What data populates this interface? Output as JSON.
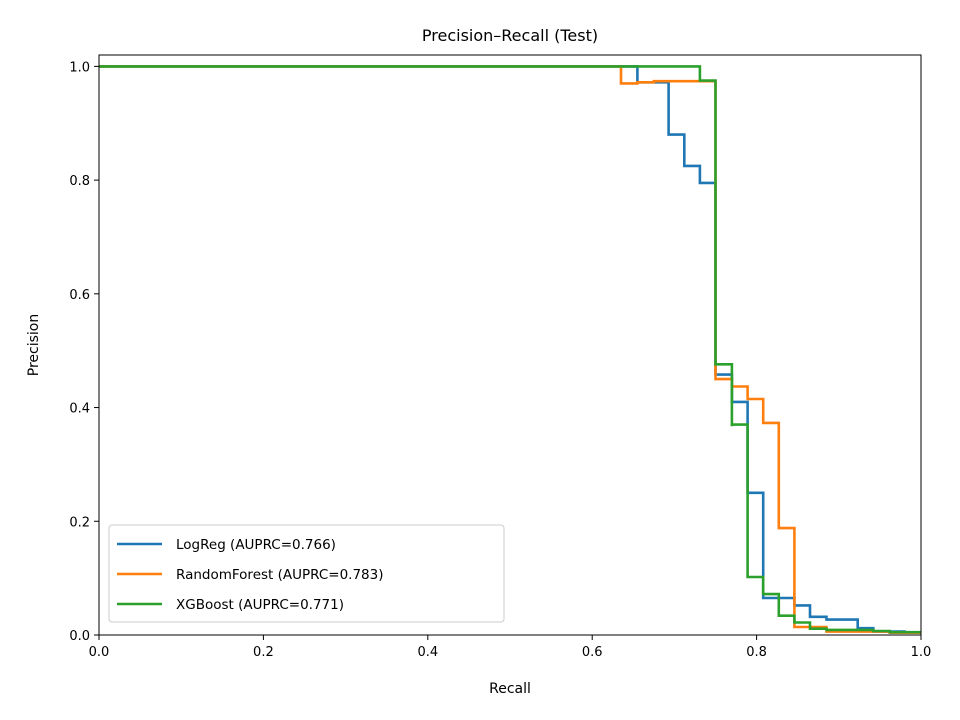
{
  "chart_data": {
    "type": "line",
    "step": "post",
    "title": "Precision–Recall (Test)",
    "xlabel": "Recall",
    "ylabel": "Precision",
    "xlim": [
      0,
      1
    ],
    "ylim": [
      0,
      1.02
    ],
    "x_ticks": [
      "0.0",
      "0.2",
      "0.4",
      "0.6",
      "0.8",
      "1.0"
    ],
    "y_ticks": [
      "0.0",
      "0.2",
      "0.4",
      "0.6",
      "0.8",
      "1.0"
    ],
    "grid": false,
    "legend_position": "lower-left",
    "series": [
      {
        "name": "LogReg (AUPRC=0.766)",
        "color": "#1f77b4",
        "points": [
          [
            0,
            1.0
          ],
          [
            0.655,
            1.0
          ],
          [
            0.655,
            0.972
          ],
          [
            0.693,
            0.972
          ],
          [
            0.693,
            0.88
          ],
          [
            0.712,
            0.88
          ],
          [
            0.712,
            0.825
          ],
          [
            0.731,
            0.825
          ],
          [
            0.731,
            0.795
          ],
          [
            0.75,
            0.795
          ],
          [
            0.75,
            0.458
          ],
          [
            0.77,
            0.458
          ],
          [
            0.77,
            0.41
          ],
          [
            0.789,
            0.41
          ],
          [
            0.789,
            0.25
          ],
          [
            0.808,
            0.25
          ],
          [
            0.808,
            0.065
          ],
          [
            0.846,
            0.065
          ],
          [
            0.846,
            0.052
          ],
          [
            0.865,
            0.052
          ],
          [
            0.865,
            0.032
          ],
          [
            0.885,
            0.032
          ],
          [
            0.885,
            0.027
          ],
          [
            0.923,
            0.027
          ],
          [
            0.923,
            0.012
          ],
          [
            0.942,
            0.012
          ],
          [
            0.942,
            0.006
          ],
          [
            0.98,
            0.006
          ],
          [
            0.98,
            0.004
          ],
          [
            1.0,
            0.004
          ]
        ]
      },
      {
        "name": "RandomForest (AUPRC=0.783)",
        "color": "#ff7f0e",
        "points": [
          [
            0,
            1.0
          ],
          [
            0.635,
            1.0
          ],
          [
            0.635,
            0.97
          ],
          [
            0.655,
            0.97
          ],
          [
            0.655,
            0.972
          ],
          [
            0.675,
            0.972
          ],
          [
            0.675,
            0.974
          ],
          [
            0.75,
            0.974
          ],
          [
            0.75,
            0.45
          ],
          [
            0.77,
            0.45
          ],
          [
            0.77,
            0.437
          ],
          [
            0.789,
            0.437
          ],
          [
            0.789,
            0.415
          ],
          [
            0.808,
            0.415
          ],
          [
            0.808,
            0.373
          ],
          [
            0.827,
            0.373
          ],
          [
            0.827,
            0.188
          ],
          [
            0.846,
            0.188
          ],
          [
            0.846,
            0.014
          ],
          [
            0.885,
            0.014
          ],
          [
            0.885,
            0.006
          ],
          [
            0.962,
            0.006
          ],
          [
            0.962,
            0.004
          ],
          [
            1.0,
            0.004
          ]
        ]
      },
      {
        "name": "XGBoost (AUPRC=0.771)",
        "color": "#2ca02c",
        "points": [
          [
            0,
            1.0
          ],
          [
            0.731,
            1.0
          ],
          [
            0.731,
            0.975
          ],
          [
            0.75,
            0.975
          ],
          [
            0.75,
            0.476
          ],
          [
            0.77,
            0.476
          ],
          [
            0.77,
            0.367
          ],
          [
            0.77,
            0.37
          ],
          [
            0.789,
            0.37
          ],
          [
            0.789,
            0.102
          ],
          [
            0.808,
            0.102
          ],
          [
            0.808,
            0.072
          ],
          [
            0.827,
            0.072
          ],
          [
            0.827,
            0.034
          ],
          [
            0.846,
            0.034
          ],
          [
            0.846,
            0.022
          ],
          [
            0.865,
            0.022
          ],
          [
            0.865,
            0.011
          ],
          [
            0.885,
            0.011
          ],
          [
            0.885,
            0.009
          ],
          [
            0.942,
            0.009
          ],
          [
            0.942,
            0.007
          ],
          [
            0.962,
            0.007
          ],
          [
            0.962,
            0.005
          ],
          [
            1.0,
            0.005
          ]
        ]
      }
    ]
  }
}
